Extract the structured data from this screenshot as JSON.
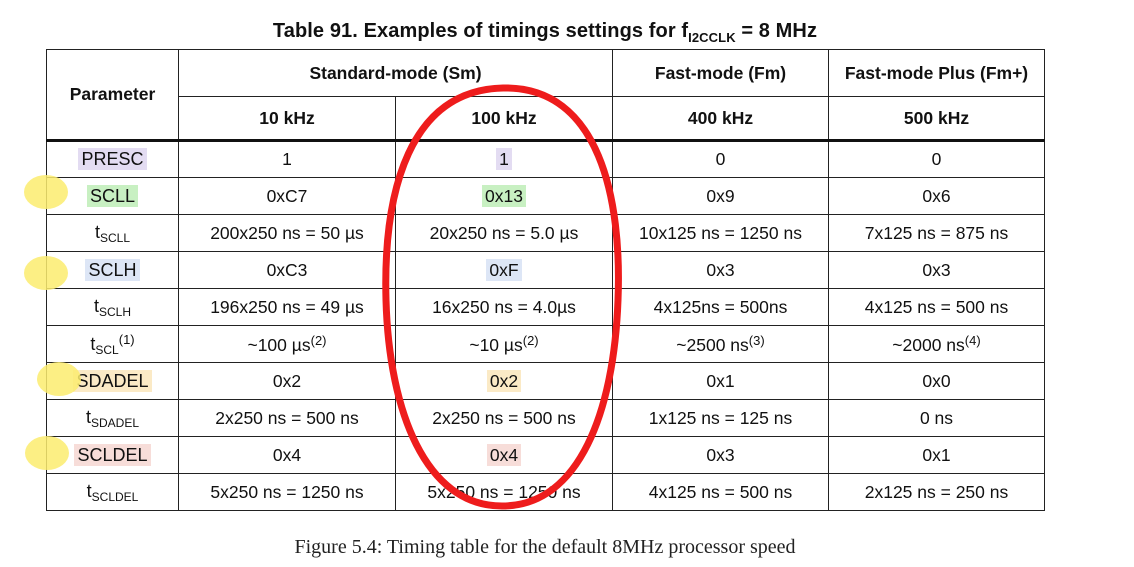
{
  "title": {
    "prefix": "Table 91. Examples of timings settings for f",
    "sub": "I2CCLK",
    "suffix": " = 8 MHz"
  },
  "header": {
    "parameter": "Parameter",
    "standard_mode": "Standard-mode (Sm)",
    "fast_mode": "Fast-mode (Fm)",
    "fast_mode_plus": "Fast-mode Plus (Fm+)",
    "freq_10": "10 kHz",
    "freq_100": "100 kHz",
    "freq_400": "400 kHz",
    "freq_500": "500 kHz"
  },
  "rows": [
    {
      "param": "PRESC",
      "v10": "1",
      "v100": "1",
      "v400": "0",
      "v500": "0"
    },
    {
      "param": "SCLL",
      "v10": "0xC7",
      "v100": "0x13",
      "v400": "0x9",
      "v500": "0x6"
    },
    {
      "param": "t",
      "param_sub": "SCLL",
      "v10": "200x250 ns = 50 µs",
      "v100": "20x250 ns = 5.0 µs",
      "v400": "10x125 ns = 1250 ns",
      "v500": "7x125 ns = 875 ns"
    },
    {
      "param": "SCLH",
      "v10": "0xC3",
      "v100": "0xF",
      "v400": "0x3",
      "v500": "0x3"
    },
    {
      "param": "t",
      "param_sub": "SCLH",
      "v10": "196x250 ns = 49 µs",
      "v100": "16x250 ns = 4.0µs",
      "v400": "4x125ns = 500ns",
      "v500": "4x125 ns = 500 ns"
    },
    {
      "param": "t",
      "param_sub": "SCL",
      "param_sup": "(1)",
      "v10": "~100 µs",
      "v10_sup": "(2)",
      "v100": "~10 µs",
      "v100_sup": "(2)",
      "v400": "~2500 ns",
      "v400_sup": "(3)",
      "v500": "~2000 ns",
      "v500_sup": "(4)"
    },
    {
      "param": "SDADEL",
      "v10": "0x2",
      "v100": "0x2",
      "v400": "0x1",
      "v500": "0x0"
    },
    {
      "param": "t",
      "param_sub": "SDADEL",
      "v10": "2x250 ns = 500 ns",
      "v100": "2x250 ns = 500 ns",
      "v400": "1x125 ns = 125 ns",
      "v500": "0 ns"
    },
    {
      "param": "SCLDEL",
      "v10": "0x4",
      "v100": "0x4",
      "v400": "0x3",
      "v500": "0x1"
    },
    {
      "param": "t",
      "param_sub": "SCLDEL",
      "v10": "5x250 ns = 1250 ns",
      "v100": "5x250 ns = 1250 ns",
      "v400": "4x125 ns = 500 ns",
      "v500": "2x125 ns = 250 ns"
    }
  ],
  "caption": "Figure 5.4: Timing table for the default 8MHz processor speed",
  "colors": {
    "circle": "#ee1c1c",
    "highlight_yellow": "#fcec6e",
    "purple": "#e3dcf2",
    "green": "#c8f0c2",
    "blue": "#dde6f6",
    "orange": "#fbeac6",
    "pink": "#f7ddd9"
  }
}
